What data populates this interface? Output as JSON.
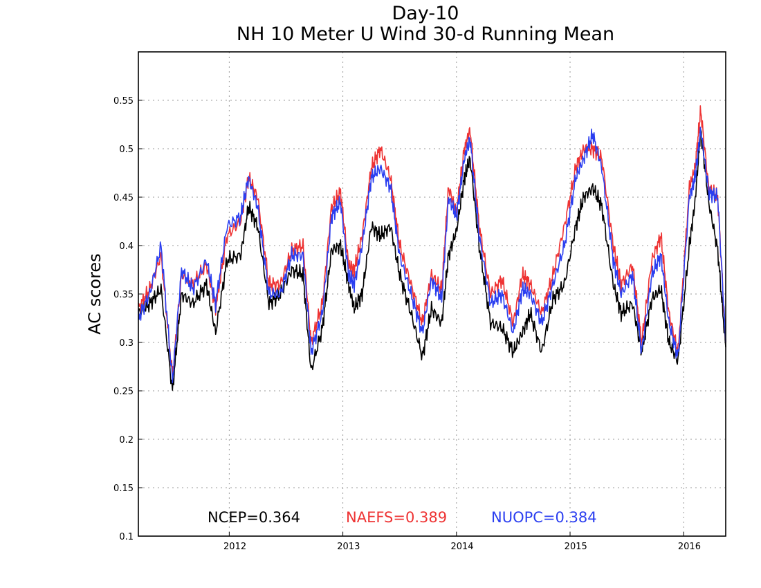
{
  "chart_data": {
    "type": "line",
    "title": "Day-10",
    "subtitle": "NH 10 Meter U Wind 30-d Running Mean",
    "xlabel": "",
    "ylabel": "AC scores",
    "xlim": [
      2011.2,
      2016.37
    ],
    "ylim": [
      0.1,
      0.6
    ],
    "x_ticks": [
      "2012",
      "2013",
      "2014",
      "2015",
      "2016"
    ],
    "y_ticks": [
      "0.1",
      "0.15",
      "0.2",
      "0.25",
      "0.3",
      "0.35",
      "0.4",
      "0.45",
      "0.5",
      "0.55"
    ],
    "grid": true,
    "legend_placement": "bottom",
    "series": [
      {
        "name": "NCEP",
        "legend_text": "NCEP=0.364",
        "color": "#000000",
        "x": [
          2011.2,
          2011.3,
          2011.4,
          2011.5,
          2011.58,
          2011.68,
          2011.8,
          2011.88,
          2011.98,
          2012.1,
          2012.17,
          2012.25,
          2012.35,
          2012.45,
          2012.55,
          2012.65,
          2012.72,
          2012.82,
          2012.9,
          2012.98,
          2013.05,
          2013.1,
          2013.17,
          2013.25,
          2013.33,
          2013.42,
          2013.5,
          2013.6,
          2013.7,
          2013.78,
          2013.87,
          2013.93,
          2014.0,
          2014.07,
          2014.12,
          2014.2,
          2014.3,
          2014.4,
          2014.5,
          2014.58,
          2014.65,
          2014.75,
          2014.85,
          2014.95,
          2015.05,
          2015.12,
          2015.2,
          2015.28,
          2015.38,
          2015.45,
          2015.55,
          2015.63,
          2015.72,
          2015.8,
          2015.87,
          2015.95,
          2016.05,
          2016.1,
          2016.15,
          2016.22,
          2016.3,
          2016.37
        ],
        "values": [
          0.33,
          0.34,
          0.355,
          0.25,
          0.35,
          0.34,
          0.36,
          0.31,
          0.385,
          0.39,
          0.44,
          0.42,
          0.34,
          0.35,
          0.375,
          0.37,
          0.27,
          0.315,
          0.395,
          0.4,
          0.36,
          0.335,
          0.35,
          0.42,
          0.41,
          0.42,
          0.37,
          0.33,
          0.285,
          0.335,
          0.32,
          0.39,
          0.415,
          0.47,
          0.49,
          0.4,
          0.32,
          0.315,
          0.29,
          0.31,
          0.33,
          0.29,
          0.345,
          0.36,
          0.42,
          0.45,
          0.46,
          0.44,
          0.36,
          0.33,
          0.34,
          0.29,
          0.345,
          0.355,
          0.3,
          0.28,
          0.4,
          0.445,
          0.52,
          0.445,
          0.395,
          0.295
        ]
      },
      {
        "name": "NAEFS",
        "legend_text": "NAEFS=0.389",
        "color": "#ee3333",
        "x": [
          2011.2,
          2011.3,
          2011.4,
          2011.5,
          2011.58,
          2011.68,
          2011.8,
          2011.88,
          2011.98,
          2012.1,
          2012.17,
          2012.25,
          2012.35,
          2012.45,
          2012.55,
          2012.65,
          2012.72,
          2012.82,
          2012.9,
          2012.98,
          2013.05,
          2013.1,
          2013.17,
          2013.25,
          2013.33,
          2013.42,
          2013.5,
          2013.6,
          2013.7,
          2013.78,
          2013.87,
          2013.93,
          2014.0,
          2014.07,
          2014.12,
          2014.2,
          2014.3,
          2014.4,
          2014.5,
          2014.58,
          2014.65,
          2014.75,
          2014.85,
          2014.95,
          2015.05,
          2015.12,
          2015.2,
          2015.28,
          2015.38,
          2015.45,
          2015.55,
          2015.63,
          2015.72,
          2015.8,
          2015.87,
          2015.95,
          2016.05,
          2016.1,
          2016.15,
          2016.22,
          2016.3,
          2016.37
        ],
        "values": [
          0.335,
          0.355,
          0.39,
          0.265,
          0.37,
          0.36,
          0.38,
          0.335,
          0.41,
          0.425,
          0.47,
          0.45,
          0.36,
          0.36,
          0.395,
          0.4,
          0.3,
          0.34,
          0.44,
          0.455,
          0.38,
          0.375,
          0.41,
          0.48,
          0.5,
          0.47,
          0.4,
          0.36,
          0.32,
          0.37,
          0.355,
          0.46,
          0.435,
          0.5,
          0.52,
          0.42,
          0.35,
          0.365,
          0.32,
          0.37,
          0.36,
          0.33,
          0.37,
          0.42,
          0.48,
          0.5,
          0.5,
          0.49,
          0.4,
          0.36,
          0.38,
          0.3,
          0.385,
          0.41,
          0.33,
          0.29,
          0.46,
          0.48,
          0.54,
          0.46,
          0.45,
          0.3
        ]
      },
      {
        "name": "NUOPC",
        "legend_text": "NUOPC=0.384",
        "color": "#2a3ef0",
        "x": [
          2011.2,
          2011.3,
          2011.4,
          2011.5,
          2011.58,
          2011.68,
          2011.8,
          2011.88,
          2011.98,
          2012.1,
          2012.17,
          2012.25,
          2012.35,
          2012.45,
          2012.55,
          2012.65,
          2012.72,
          2012.82,
          2012.9,
          2012.98,
          2013.05,
          2013.1,
          2013.17,
          2013.25,
          2013.33,
          2013.42,
          2013.5,
          2013.6,
          2013.7,
          2013.78,
          2013.87,
          2013.93,
          2014.0,
          2014.07,
          2014.12,
          2014.2,
          2014.3,
          2014.4,
          2014.5,
          2014.58,
          2014.65,
          2014.75,
          2014.85,
          2014.95,
          2015.05,
          2015.12,
          2015.2,
          2015.28,
          2015.38,
          2015.45,
          2015.55,
          2015.63,
          2015.72,
          2015.8,
          2015.87,
          2015.95,
          2016.05,
          2016.1,
          2016.15,
          2016.22,
          2016.3,
          2016.37
        ],
        "values": [
          0.325,
          0.35,
          0.4,
          0.26,
          0.375,
          0.355,
          0.385,
          0.34,
          0.42,
          0.43,
          0.47,
          0.44,
          0.35,
          0.35,
          0.39,
          0.39,
          0.29,
          0.33,
          0.43,
          0.445,
          0.37,
          0.36,
          0.4,
          0.47,
          0.48,
          0.46,
          0.39,
          0.35,
          0.31,
          0.365,
          0.345,
          0.45,
          0.43,
          0.49,
          0.51,
          0.41,
          0.34,
          0.35,
          0.31,
          0.355,
          0.35,
          0.32,
          0.36,
          0.4,
          0.47,
          0.49,
          0.515,
          0.48,
          0.385,
          0.35,
          0.37,
          0.29,
          0.37,
          0.39,
          0.32,
          0.285,
          0.45,
          0.47,
          0.52,
          0.455,
          0.45,
          0.3
        ]
      }
    ]
  }
}
